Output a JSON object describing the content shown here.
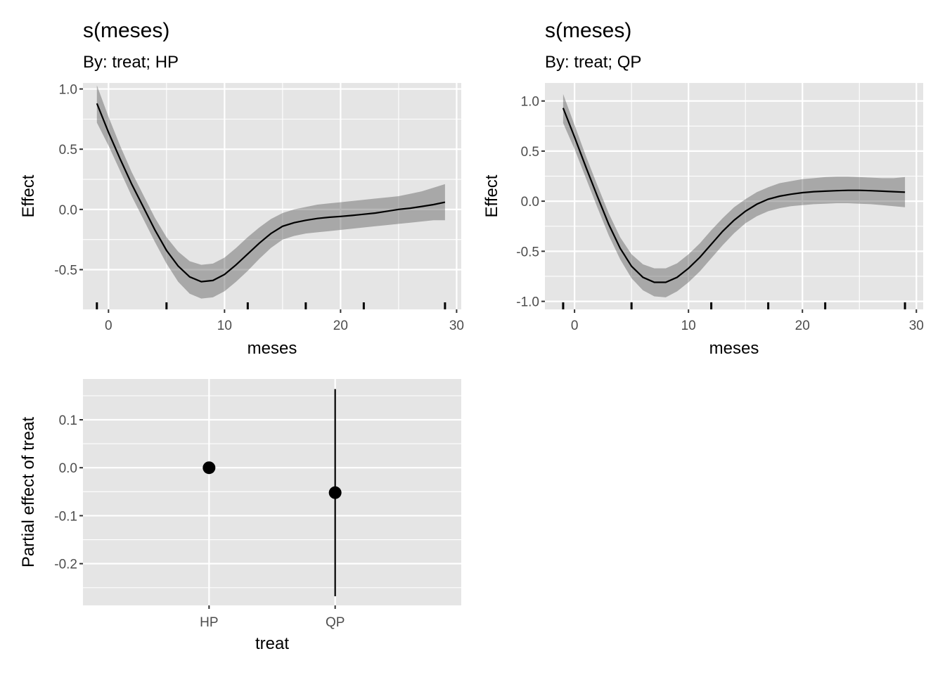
{
  "chart_data": [
    {
      "type": "line",
      "title": "s(meses)",
      "subtitle": "By: treat; HP",
      "xlabel": "meses",
      "ylabel": "Effect",
      "xlim": [
        -2.2,
        30.4
      ],
      "ylim": [
        -0.83,
        1.05
      ],
      "xticks": [
        0,
        10,
        20,
        30
      ],
      "xtick_labels": [
        "0",
        "10",
        "20",
        "30"
      ],
      "yticks": [
        1.0,
        0.5,
        0.0,
        -0.5
      ],
      "ytick_labels": [
        "1.0",
        "0.5",
        "0.0",
        "-0.5"
      ],
      "grid": true,
      "series": [
        {
          "x": [
            -1,
            0,
            1,
            2,
            3,
            4,
            5,
            6,
            7,
            8,
            9,
            10,
            11,
            12,
            13,
            14,
            15,
            16,
            17,
            18,
            19,
            20,
            21,
            22,
            23,
            24,
            25,
            26,
            27,
            28,
            29
          ],
          "y": [
            0.88,
            0.64,
            0.42,
            0.21,
            0.02,
            -0.17,
            -0.34,
            -0.47,
            -0.56,
            -0.6,
            -0.59,
            -0.54,
            -0.46,
            -0.37,
            -0.28,
            -0.2,
            -0.14,
            -0.11,
            -0.09,
            -0.075,
            -0.065,
            -0.058,
            -0.05,
            -0.04,
            -0.03,
            -0.015,
            0.0,
            0.01,
            0.025,
            0.04,
            0.06
          ],
          "lower": [
            0.72,
            0.53,
            0.32,
            0.11,
            -0.08,
            -0.27,
            -0.45,
            -0.6,
            -0.7,
            -0.74,
            -0.73,
            -0.68,
            -0.6,
            -0.51,
            -0.41,
            -0.32,
            -0.25,
            -0.22,
            -0.2,
            -0.19,
            -0.18,
            -0.17,
            -0.16,
            -0.15,
            -0.14,
            -0.13,
            -0.12,
            -0.11,
            -0.1,
            -0.09,
            -0.09
          ],
          "upper": [
            1.03,
            0.77,
            0.53,
            0.31,
            0.12,
            -0.07,
            -0.23,
            -0.35,
            -0.43,
            -0.46,
            -0.45,
            -0.4,
            -0.32,
            -0.23,
            -0.15,
            -0.08,
            -0.03,
            0.0,
            0.02,
            0.04,
            0.05,
            0.06,
            0.07,
            0.08,
            0.09,
            0.1,
            0.11,
            0.13,
            0.15,
            0.18,
            0.21
          ]
        }
      ],
      "rug_x": [
        -1,
        5,
        12,
        17,
        22,
        29
      ]
    },
    {
      "type": "line",
      "title": "s(meses)",
      "subtitle": "By: treat; QP",
      "xlabel": "meses",
      "ylabel": "Effect",
      "xlim": [
        -2.6,
        30.6
      ],
      "ylim": [
        -1.08,
        1.18
      ],
      "xticks": [
        0,
        10,
        20,
        30
      ],
      "xtick_labels": [
        "0",
        "10",
        "20",
        "30"
      ],
      "yticks": [
        1.0,
        0.5,
        0.0,
        -0.5,
        -1.0
      ],
      "ytick_labels": [
        "1.0",
        "0.5",
        "0.0",
        "-0.5",
        "-1.0"
      ],
      "grid": true,
      "series": [
        {
          "x": [
            -1,
            0,
            1,
            2,
            3,
            4,
            5,
            6,
            7,
            8,
            9,
            10,
            11,
            12,
            13,
            14,
            15,
            16,
            17,
            18,
            19,
            20,
            21,
            22,
            23,
            24,
            25,
            26,
            27,
            28,
            29
          ],
          "y": [
            0.93,
            0.64,
            0.34,
            0.05,
            -0.23,
            -0.47,
            -0.65,
            -0.76,
            -0.81,
            -0.81,
            -0.76,
            -0.67,
            -0.56,
            -0.43,
            -0.3,
            -0.19,
            -0.1,
            -0.03,
            0.02,
            0.05,
            0.07,
            0.085,
            0.095,
            0.1,
            0.105,
            0.108,
            0.108,
            0.105,
            0.1,
            0.095,
            0.09
          ],
          "lower": [
            0.78,
            0.52,
            0.23,
            -0.06,
            -0.34,
            -0.58,
            -0.77,
            -0.89,
            -0.95,
            -0.96,
            -0.9,
            -0.81,
            -0.7,
            -0.57,
            -0.44,
            -0.32,
            -0.22,
            -0.15,
            -0.1,
            -0.07,
            -0.05,
            -0.04,
            -0.03,
            -0.025,
            -0.02,
            -0.02,
            -0.025,
            -0.03,
            -0.04,
            -0.05,
            -0.06
          ],
          "upper": [
            1.07,
            0.76,
            0.45,
            0.16,
            -0.12,
            -0.36,
            -0.53,
            -0.63,
            -0.67,
            -0.67,
            -0.62,
            -0.53,
            -0.42,
            -0.29,
            -0.17,
            -0.06,
            0.02,
            0.09,
            0.14,
            0.18,
            0.2,
            0.22,
            0.23,
            0.24,
            0.245,
            0.245,
            0.24,
            0.235,
            0.23,
            0.23,
            0.24
          ]
        }
      ],
      "rug_x": [
        -1,
        5,
        12,
        17,
        22,
        29
      ]
    },
    {
      "type": "scatter",
      "xlabel": "treat",
      "ylabel": "Partial effect of treat",
      "categories": [
        "HP",
        "QP"
      ],
      "ylim": [
        -0.287,
        0.185
      ],
      "yticks": [
        0.1,
        0.0,
        -0.1,
        -0.2
      ],
      "ytick_labels": [
        "0.1",
        "0.0",
        "-0.1",
        "-0.2"
      ],
      "grid": true,
      "values": [
        0.0,
        -0.052
      ],
      "lower": [
        0.0,
        -0.268
      ],
      "upper": [
        0.0,
        0.164
      ]
    }
  ]
}
